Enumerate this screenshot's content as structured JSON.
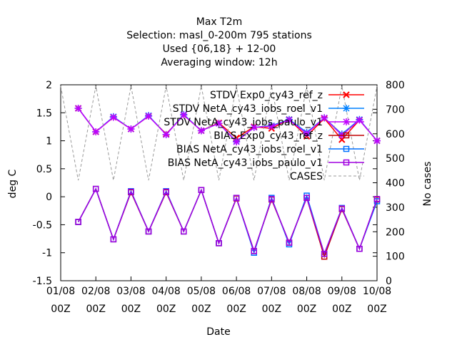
{
  "chart_data": {
    "type": "line",
    "title_lines": [
      "Max T2m",
      "Selection: masl_0-200m    795 stations",
      "Used {06,18} + 12-00",
      "Averaging window: 12h"
    ],
    "xlabel": "Date",
    "ylabel": "deg C",
    "y2label": "No cases",
    "ylim": [
      -1.5,
      2
    ],
    "y2lim": [
      0,
      800
    ],
    "yticks": [
      "2",
      "1.5",
      "1",
      "0.5",
      "0",
      "-0.5",
      "-1",
      "-1.5"
    ],
    "ytick_values": [
      2,
      1.5,
      1,
      0.5,
      0,
      -0.5,
      -1,
      -1.5
    ],
    "y2ticks": [
      "800",
      "700",
      "600",
      "500",
      "400",
      "300",
      "200",
      "100",
      "0"
    ],
    "y2tick_values": [
      800,
      700,
      600,
      500,
      400,
      300,
      200,
      100,
      0
    ],
    "xticks": [
      {
        "date": "01/08",
        "time": "00Z"
      },
      {
        "date": "02/08",
        "time": "00Z"
      },
      {
        "date": "03/08",
        "time": "00Z"
      },
      {
        "date": "04/08",
        "time": "00Z"
      },
      {
        "date": "05/08",
        "time": "00Z"
      },
      {
        "date": "06/08",
        "time": "00Z"
      },
      {
        "date": "07/08",
        "time": "00Z"
      },
      {
        "date": "08/08",
        "time": "00Z"
      },
      {
        "date": "09/08",
        "time": "00Z"
      },
      {
        "date": "10/08",
        "time": "00Z"
      }
    ],
    "x": [
      0.5,
      1.0,
      1.5,
      2.0,
      2.5,
      3.0,
      3.5,
      4.0,
      4.5,
      5.0,
      5.5,
      6.0,
      6.5,
      7.0,
      7.5,
      8.0,
      8.5,
      9.0,
      9.5,
      10.0
    ],
    "x_unit_note": "",
    "legend_position": "top-right",
    "series": [
      {
        "name": "STDV Exp0_cy43_ref_z",
        "axis": "y",
        "color": "#ff0000",
        "marker": "x",
        "values": [
          1.58,
          1.16,
          1.42,
          1.21,
          1.44,
          1.12,
          1.46,
          1.18,
          1.32,
          1.05,
          1.25,
          1.22,
          1.38,
          1.08,
          1.4,
          1.02,
          1.37,
          1.0,
          null,
          null
        ]
      },
      {
        "name": "STDV NetA_cy43_iobs_roel_v1",
        "axis": "y",
        "color": "#0080ff",
        "marker": "*",
        "values": [
          1.58,
          1.16,
          1.43,
          1.21,
          1.45,
          1.11,
          1.47,
          1.18,
          1.31,
          0.99,
          1.24,
          1.27,
          1.38,
          1.15,
          1.41,
          1.12,
          1.38,
          1.0,
          null,
          null
        ]
      },
      {
        "name": "STDV NetA_cy43_iobs_paulo_v1",
        "axis": "y",
        "color": "#c000ff",
        "marker": "*",
        "values": [
          1.58,
          1.16,
          1.42,
          1.21,
          1.44,
          1.11,
          1.46,
          1.18,
          1.31,
          0.98,
          1.24,
          1.26,
          1.37,
          1.13,
          1.41,
          1.1,
          1.37,
          1.0,
          null,
          null
        ]
      },
      {
        "name": "BIAS Exp0_cy43_ref_z",
        "axis": "y",
        "color": "#c00000",
        "marker": "square",
        "values": [
          -0.45,
          0.14,
          -0.76,
          0.08,
          -0.62,
          0.08,
          -0.62,
          0.12,
          -0.83,
          -0.03,
          -0.97,
          -0.05,
          -0.82,
          -0.02,
          -1.07,
          -0.22,
          -0.93,
          -0.05,
          null,
          null
        ]
      },
      {
        "name": "BIAS NetA_cy43_iobs_roel_v1",
        "axis": "y",
        "color": "#0070ff",
        "marker": "square",
        "values": [
          -0.45,
          0.14,
          -0.76,
          0.1,
          -0.62,
          0.1,
          -0.62,
          0.12,
          -0.83,
          -0.02,
          -1.0,
          -0.02,
          -0.85,
          0.02,
          -1.02,
          -0.2,
          -0.93,
          -0.08,
          null,
          null
        ]
      },
      {
        "name": "BIAS NetA_cy43_iobs_paulo_v1",
        "axis": "y",
        "color": "#a000e0",
        "marker": "square",
        "values": [
          -0.45,
          0.14,
          -0.76,
          0.09,
          -0.62,
          0.09,
          -0.62,
          0.12,
          -0.83,
          -0.02,
          -0.97,
          -0.04,
          -0.82,
          -0.02,
          -1.02,
          -0.21,
          -0.93,
          -0.04,
          null,
          null
        ]
      },
      {
        "name": "CASES",
        "axis": "y2",
        "color": "#999999",
        "marker": "none",
        "dashed": true,
        "x": [
          0.0,
          0.5,
          1.0,
          1.5,
          2.0,
          2.5,
          3.0,
          3.5,
          4.0,
          4.5,
          5.0,
          5.5,
          6.0,
          6.5,
          7.0,
          7.5,
          8.0,
          8.5,
          9.0,
          9.5,
          10.0
        ],
        "values": [
          795,
          410,
          795,
          410,
          795,
          410,
          795,
          410,
          795,
          410,
          795,
          410,
          795,
          410,
          795,
          410,
          795,
          410,
          795,
          410,
          795
        ]
      }
    ]
  }
}
